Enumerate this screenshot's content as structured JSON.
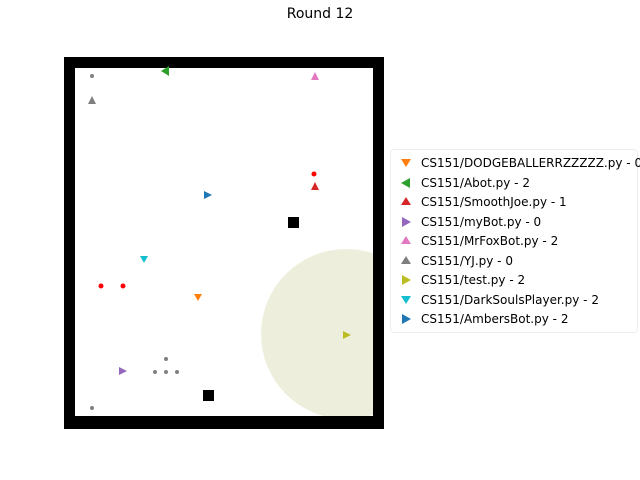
{
  "title": "Round 12",
  "colors": {
    "wall": "#000000",
    "floor": "#ffffff",
    "zone": "#eeeedd",
    "bullet": "#ff0000",
    "neutral": "#808080"
  },
  "legend": [
    {
      "name": "CS151/DODGEBALLERRZZZZZ.py",
      "score": "0",
      "color": "#ff7f0e",
      "marker": "tri-down"
    },
    {
      "name": "CS151/Abot.py",
      "score": "2",
      "color": "#2ca02c",
      "marker": "tri-left"
    },
    {
      "name": "CS151/SmoothJoe.py",
      "score": "1",
      "color": "#d62728",
      "marker": "tri-up"
    },
    {
      "name": "CS151/myBot.py",
      "score": "0",
      "color": "#9467bd",
      "marker": "tri-right"
    },
    {
      "name": "CS151/MrFoxBot.py",
      "score": "2",
      "color": "#e377c2",
      "marker": "tri-up"
    },
    {
      "name": "CS151/YJ.py",
      "score": "0",
      "color": "#7f7f7f",
      "marker": "tri-up"
    },
    {
      "name": "CS151/test.py",
      "score": "2",
      "color": "#bcbd22",
      "marker": "tri-right"
    },
    {
      "name": "CS151/DarkSoulsPlayer.py",
      "score": "2",
      "color": "#17becf",
      "marker": "tri-down"
    },
    {
      "name": "CS151/AmbersBot.py",
      "score": "2",
      "color": "#1f77b4",
      "marker": "tri-right"
    }
  ],
  "score_separator": " - "
}
